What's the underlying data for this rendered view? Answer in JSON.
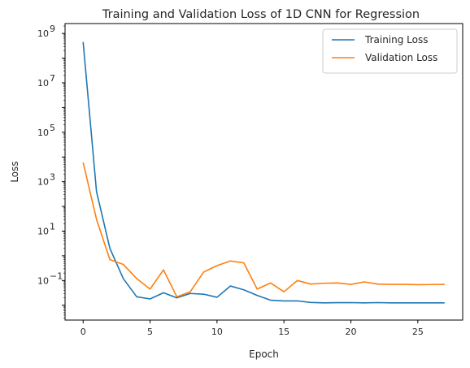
{
  "chart_data": {
    "type": "line",
    "title": "Training and Validation Loss of 1D CNN for Regression",
    "xlabel": "Epoch",
    "ylabel": "Loss",
    "yscale": "log",
    "xlim": [
      -1.35,
      28.35
    ],
    "ylim_log10": [
      -2.6,
      9.4
    ],
    "xticks": [
      0,
      5,
      10,
      15,
      20,
      25
    ],
    "yticks": [
      {
        "exp": -1,
        "label": "10",
        "sup": "−1"
      },
      {
        "exp": 1,
        "label": "10",
        "sup": "1"
      },
      {
        "exp": 3,
        "label": "10",
        "sup": "3"
      },
      {
        "exp": 5,
        "label": "10",
        "sup": "5"
      },
      {
        "exp": 7,
        "label": "10",
        "sup": "7"
      },
      {
        "exp": 9,
        "label": "10",
        "sup": "9"
      }
    ],
    "grid": false,
    "legend_position": "top-right",
    "x": [
      0,
      1,
      2,
      3,
      4,
      5,
      6,
      7,
      8,
      9,
      10,
      11,
      12,
      13,
      14,
      15,
      16,
      17,
      18,
      19,
      20,
      21,
      22,
      23,
      24,
      25,
      26,
      27
    ],
    "series": [
      {
        "name": "Training Loss",
        "color": "#1f77b4",
        "values": [
          450000000,
          400,
          2.0,
          0.12,
          0.022,
          0.018,
          0.032,
          0.02,
          0.03,
          0.028,
          0.021,
          0.06,
          0.042,
          0.025,
          0.016,
          0.015,
          0.015,
          0.013,
          0.0125,
          0.0127,
          0.0128,
          0.0125,
          0.0128,
          0.0125,
          0.0125,
          0.0125,
          0.0125,
          0.0125
        ]
      },
      {
        "name": "Validation Loss",
        "color": "#ff7f0e",
        "values": [
          6000,
          30,
          0.7,
          0.45,
          0.12,
          0.045,
          0.27,
          0.022,
          0.035,
          0.22,
          0.4,
          0.62,
          0.52,
          0.045,
          0.08,
          0.035,
          0.1,
          0.072,
          0.078,
          0.08,
          0.07,
          0.088,
          0.072,
          0.07,
          0.07,
          0.068,
          0.069,
          0.07
        ]
      }
    ]
  }
}
